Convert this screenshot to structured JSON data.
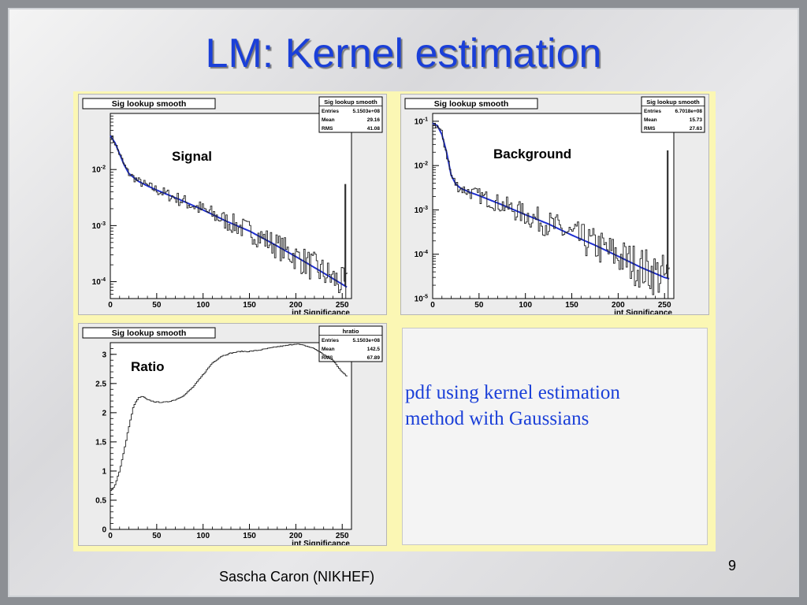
{
  "slide": {
    "title": "LM: Kernel estimation",
    "note_line1": "pdf using kernel estimation",
    "note_line2": "method with Gaussians",
    "footer": "Sascha Caron (NIKHEF)",
    "page_number": "9",
    "colors": {
      "title": "#1a3fd8",
      "figure_bg": "#fbf7b4",
      "curve": "#1f2fd0",
      "histogram": "#202020"
    }
  },
  "chart_data": [
    {
      "type": "line",
      "plot_title": "Sig lookup smooth",
      "label": "Signal",
      "xlabel": "int Significance",
      "yscale": "log",
      "xlim": [
        0,
        260
      ],
      "ylim": [
        5e-05,
        0.1
      ],
      "x_ticks": [
        0,
        50,
        100,
        150,
        200,
        250
      ],
      "y_ticks": [
        {
          "value": 0.01,
          "base": "10",
          "exp": "-2"
        },
        {
          "value": 0.001,
          "base": "10",
          "exp": "-3"
        },
        {
          "value": 0.0001,
          "base": "10",
          "exp": "-4"
        }
      ],
      "stats": {
        "name": "Sig lookup smooth",
        "rows": [
          {
            "key": "Entries",
            "value": "5.1503e+08"
          },
          {
            "key": "Mean",
            "value": "29.16"
          },
          {
            "key": "RMS",
            "value": "41.08"
          }
        ]
      },
      "series": [
        {
          "name": "kernel estimate",
          "x": [
            0,
            5,
            10,
            15,
            20,
            30,
            40,
            50,
            75,
            100,
            125,
            150,
            175,
            200,
            225,
            250,
            255
          ],
          "y": [
            0.04,
            0.03,
            0.019,
            0.012,
            0.0085,
            0.0062,
            0.0051,
            0.0043,
            0.0029,
            0.0019,
            0.0012,
            0.0008,
            0.00048,
            0.00028,
            0.00016,
            9e-05,
            8e-05
          ]
        },
        {
          "name": "histogram",
          "style": "step",
          "noise": 0.2,
          "spike": {
            "x": 253,
            "y": 0.0055
          },
          "x": [
            0,
            5,
            10,
            15,
            20,
            30,
            40,
            50,
            75,
            100,
            125,
            150,
            175,
            200,
            225,
            250,
            255
          ],
          "y": [
            0.04,
            0.03,
            0.019,
            0.012,
            0.0085,
            0.0062,
            0.0051,
            0.0043,
            0.0029,
            0.0019,
            0.0012,
            0.0008,
            0.00048,
            0.00028,
            0.00016,
            9e-05,
            8e-05
          ]
        }
      ]
    },
    {
      "type": "line",
      "plot_title": "Sig lookup smooth",
      "label": "Background",
      "xlabel": "int Significance",
      "yscale": "log",
      "xlim": [
        0,
        260
      ],
      "ylim": [
        1e-05,
        0.15
      ],
      "x_ticks": [
        0,
        50,
        100,
        150,
        200,
        250
      ],
      "y_ticks": [
        {
          "value": 0.1,
          "base": "10",
          "exp": "-1"
        },
        {
          "value": 0.01,
          "base": "10",
          "exp": "-2"
        },
        {
          "value": 0.001,
          "base": "10",
          "exp": "-3"
        },
        {
          "value": 0.0001,
          "base": "10",
          "exp": "-4"
        },
        {
          "value": 1e-05,
          "base": "10",
          "exp": "-5"
        }
      ],
      "stats": {
        "name": "Sig lookup smooth",
        "rows": [
          {
            "key": "Entries",
            "value": "6.7018e+08"
          },
          {
            "key": "Mean",
            "value": "15.73"
          },
          {
            "key": "RMS",
            "value": "27.63"
          }
        ]
      },
      "series": [
        {
          "name": "kernel estimate",
          "x": [
            0,
            5,
            10,
            15,
            20,
            25,
            30,
            40,
            50,
            75,
            100,
            125,
            150,
            175,
            200,
            225,
            250,
            255
          ],
          "y": [
            0.09,
            0.08,
            0.05,
            0.02,
            0.006,
            0.0038,
            0.0031,
            0.0025,
            0.0021,
            0.0013,
            0.00078,
            0.00048,
            0.00027,
            0.00016,
            9e-05,
            5e-05,
            3e-05,
            2.8e-05
          ]
        },
        {
          "name": "histogram",
          "style": "step",
          "noise": 0.35,
          "spike": {
            "x": 253,
            "y": 0.022
          },
          "x": [
            0,
            5,
            10,
            15,
            20,
            25,
            30,
            40,
            50,
            75,
            100,
            125,
            150,
            175,
            200,
            225,
            250,
            255
          ],
          "y": [
            0.09,
            0.08,
            0.05,
            0.02,
            0.006,
            0.0038,
            0.0031,
            0.0025,
            0.0021,
            0.0013,
            0.00078,
            0.00048,
            0.00027,
            0.00016,
            9e-05,
            5e-05,
            3e-05,
            2.8e-05
          ]
        }
      ]
    },
    {
      "type": "line",
      "plot_title": "Sig lookup smooth",
      "label": "Ratio",
      "xlabel": "int Significance",
      "yscale": "linear",
      "xlim": [
        0,
        260
      ],
      "ylim": [
        0,
        3.2
      ],
      "x_ticks": [
        0,
        50,
        100,
        150,
        200,
        250
      ],
      "y_ticks": [
        {
          "value": 0,
          "label": "0"
        },
        {
          "value": 0.5,
          "label": "0.5"
        },
        {
          "value": 1,
          "label": "1"
        },
        {
          "value": 1.5,
          "label": "1.5"
        },
        {
          "value": 2,
          "label": "2"
        },
        {
          "value": 2.5,
          "label": "2.5"
        },
        {
          "value": 3,
          "label": "3"
        }
      ],
      "stats": {
        "name": "hratio",
        "rows": [
          {
            "key": "Entries",
            "value": "5.1503e+08"
          },
          {
            "key": "Mean",
            "value": "142.5"
          },
          {
            "key": "RMS",
            "value": "67.89"
          }
        ]
      },
      "series": [
        {
          "name": "ratio",
          "style": "step",
          "noise": 0.008,
          "x": [
            0,
            5,
            10,
            15,
            20,
            25,
            30,
            35,
            40,
            50,
            60,
            70,
            80,
            90,
            100,
            110,
            120,
            130,
            140,
            150,
            160,
            170,
            180,
            190,
            200,
            210,
            220,
            230,
            240,
            250,
            255
          ],
          "y": [
            0.65,
            0.75,
            1.0,
            1.35,
            1.75,
            2.1,
            2.25,
            2.28,
            2.22,
            2.18,
            2.18,
            2.22,
            2.3,
            2.45,
            2.65,
            2.85,
            2.97,
            3.02,
            3.05,
            3.05,
            3.07,
            3.1,
            3.13,
            3.15,
            3.18,
            3.15,
            3.1,
            3.0,
            2.9,
            2.7,
            2.62
          ]
        }
      ]
    }
  ]
}
